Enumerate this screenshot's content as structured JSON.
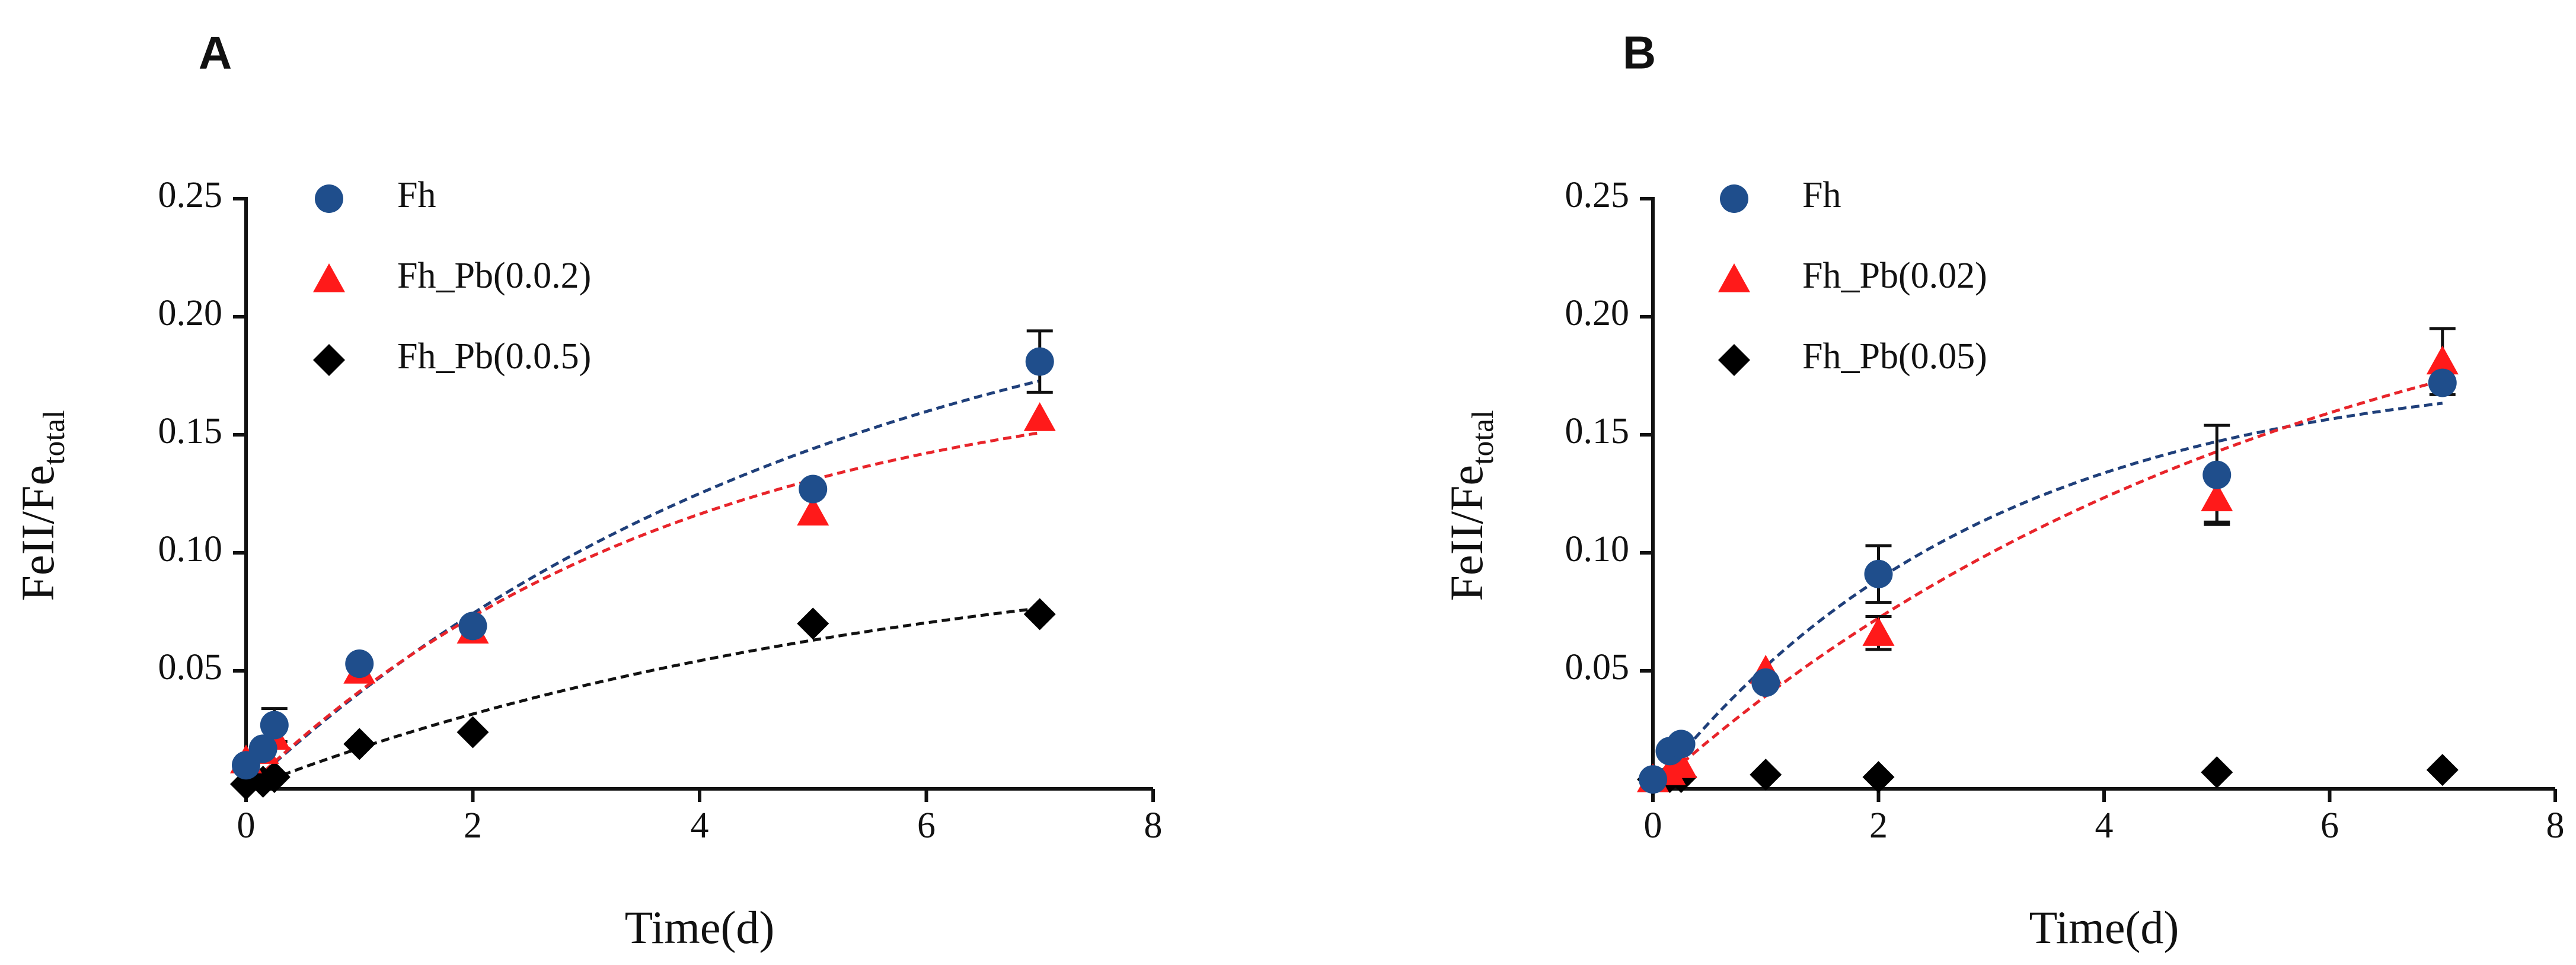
{
  "chart_data": [
    {
      "type": "scatter",
      "panel_label": "A",
      "title": "",
      "xlabel": "Time(d)",
      "ylabel_main": "FeII/Fe",
      "ylabel_sub": "total",
      "xlim": [
        0,
        8
      ],
      "ylim": [
        0,
        0.25
      ],
      "xticks": [
        0,
        2,
        4,
        6,
        8
      ],
      "xtick_labels": [
        "0",
        "2",
        "4",
        "6",
        "8"
      ],
      "yticks": [
        0.05,
        0.1,
        0.15,
        0.2,
        0.25
      ],
      "ytick_labels": [
        "0.05",
        "0.10",
        "0.15",
        "0.20",
        "0.25"
      ],
      "legend_position": "top-left",
      "grid": false,
      "series": [
        {
          "name": "Fh",
          "marker": "circle",
          "color": "#1f4e8c",
          "line_color": "#1f3f7a",
          "x": [
            0,
            0.15,
            0.25,
            1,
            2,
            5,
            7
          ],
          "y": [
            0.01,
            0.017,
            0.027,
            0.053,
            0.069,
            0.127,
            0.181
          ],
          "err": [
            0,
            0,
            0.007,
            0,
            0,
            0,
            0.013
          ],
          "fit": {
            "a": 0.235,
            "k": 0.19
          }
        },
        {
          "name": "Fh_Pb(0.0.2)",
          "marker": "triangle",
          "color": "#ff1a1a",
          "line_color": "#e8242a",
          "x": [
            0,
            0.15,
            0.25,
            1,
            2,
            5,
            7
          ],
          "y": [
            0.012,
            0.016,
            0.022,
            0.05,
            0.067,
            0.117,
            0.157
          ],
          "err": [
            0,
            0,
            0,
            0,
            0,
            0,
            0
          ],
          "fit": {
            "a": 0.18,
            "k": 0.26
          }
        },
        {
          "name": "Fh_Pb(0.0.5)",
          "marker": "diamond",
          "color": "#000000",
          "line_color": "#111111",
          "x": [
            0,
            0.15,
            0.25,
            1,
            2,
            5,
            7
          ],
          "y": [
            0.002,
            0.003,
            0.005,
            0.019,
            0.024,
            0.07,
            0.074
          ],
          "err": [
            0,
            0,
            0,
            0,
            0,
            0,
            0
          ],
          "fit": {
            "a": 0.11,
            "k": 0.17
          }
        }
      ]
    },
    {
      "type": "scatter",
      "panel_label": "B",
      "title": "",
      "xlabel": "Time(d)",
      "ylabel_main": "FeII/Fe",
      "ylabel_sub": "total",
      "xlim": [
        0,
        8
      ],
      "ylim": [
        0,
        0.25
      ],
      "xticks": [
        0,
        2,
        4,
        6,
        8
      ],
      "xtick_labels": [
        "0",
        "2",
        "4",
        "6",
        "8"
      ],
      "yticks": [
        0.05,
        0.1,
        0.15,
        0.2,
        0.25
      ],
      "ytick_labels": [
        "0.05",
        "0.10",
        "0.15",
        "0.20",
        "0.25"
      ],
      "legend_position": "top-left",
      "grid": false,
      "series": [
        {
          "name": "Fh",
          "marker": "circle",
          "color": "#1f4e8c",
          "line_color": "#1f3f7a",
          "x": [
            0,
            0.15,
            0.25,
            1,
            2,
            5,
            7
          ],
          "y": [
            0.004,
            0.016,
            0.019,
            0.045,
            0.091,
            0.133,
            0.172
          ],
          "err": [
            0,
            0,
            0,
            0,
            0.012,
            0.021,
            0
          ],
          "fit": {
            "a": 0.18,
            "k": 0.34
          }
        },
        {
          "name": "Fh_Pb(0.02)",
          "marker": "triangle",
          "color": "#ff1a1a",
          "line_color": "#e8242a",
          "x": [
            0,
            0.15,
            0.25,
            1,
            2,
            5,
            7
          ],
          "y": [
            0.004,
            0.007,
            0.01,
            0.05,
            0.066,
            0.123,
            0.181
          ],
          "err": [
            0,
            0,
            0,
            0,
            0.007,
            0.01,
            0.014
          ],
          "fit": {
            "a": 0.245,
            "k": 0.175
          }
        },
        {
          "name": "Fh_Pb(0.05)",
          "marker": "diamond",
          "color": "#000000",
          "line_color": "#111111",
          "x": [
            0,
            0.15,
            0.25,
            1,
            2,
            5,
            7
          ],
          "y": [
            0.004,
            0.005,
            0.005,
            0.006,
            0.005,
            0.007,
            0.008
          ],
          "err": [
            0,
            0,
            0,
            0,
            0,
            0,
            0
          ],
          "fit": null
        }
      ]
    }
  ]
}
